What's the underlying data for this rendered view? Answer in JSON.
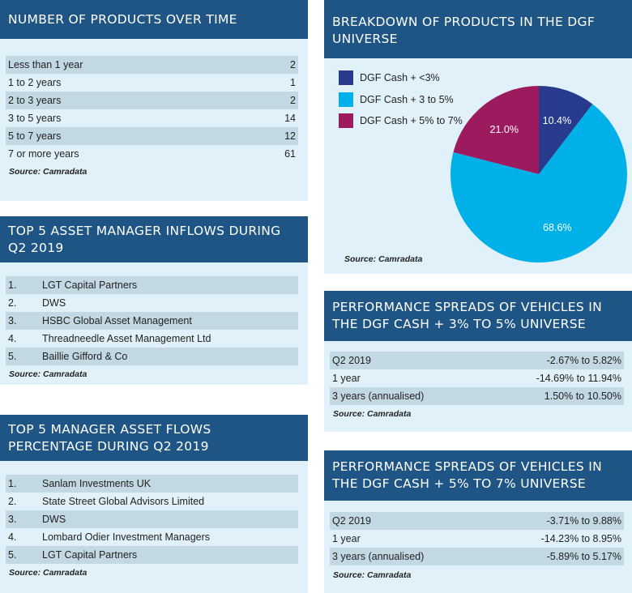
{
  "products_over_time": {
    "title": "NUMBER OF PRODUCTS OVER TIME",
    "rows": [
      {
        "label": "Less than 1 year",
        "value": "2"
      },
      {
        "label": "1 to 2 years",
        "value": "1"
      },
      {
        "label": "2 to 3 years",
        "value": "2"
      },
      {
        "label": "3 to 5 years",
        "value": "14"
      },
      {
        "label": "5 to 7 years",
        "value": "12"
      },
      {
        "label": "7 or more years",
        "value": "61"
      }
    ],
    "source": "Source: Camradata"
  },
  "inflows": {
    "title": "TOP 5 ASSET MANAGER INFLOWS DURING Q2 2019",
    "rows": [
      {
        "rank": "1.",
        "name": "LGT Capital Partners"
      },
      {
        "rank": "2.",
        "name": "DWS"
      },
      {
        "rank": "3.",
        "name": "HSBC Global Asset Management"
      },
      {
        "rank": "4.",
        "name": "Threadneedle Asset Management Ltd"
      },
      {
        "rank": "5.",
        "name": "Baillie Gifford & Co"
      }
    ],
    "source": "Source: Camradata"
  },
  "flows_pct": {
    "title": "TOP 5 MANAGER ASSET FLOWS PERCENTAGE DURING Q2 2019",
    "rows": [
      {
        "rank": "1.",
        "name": "Sanlam Investments UK"
      },
      {
        "rank": "2.",
        "name": "State Street Global Advisors Limited"
      },
      {
        "rank": "3.",
        "name": "DWS"
      },
      {
        "rank": "4.",
        "name": "Lombard Odier Investment Managers"
      },
      {
        "rank": "5.",
        "name": "LGT Capital Partners"
      }
    ],
    "source": "Source: Camradata"
  },
  "breakdown": {
    "title": "BREAKDOWN OF PRODUCTS IN THE DGF UNIVERSE",
    "source": "Source: Camradata"
  },
  "chart_data": {
    "type": "pie",
    "title": "BREAKDOWN OF PRODUCTS IN THE DGF UNIVERSE",
    "slices": [
      {
        "label": "DGF Cash + <3%",
        "value": 10.4,
        "display": "10.4%",
        "color": "#283a8c"
      },
      {
        "label": "DGF Cash + 3 to 5%",
        "value": 68.6,
        "display": "68.6%",
        "color": "#00b1e9"
      },
      {
        "label": "DGF Cash + 5% to 7%",
        "value": 21.0,
        "display": "21.0%",
        "color": "#9b1b5e"
      }
    ],
    "legend_position": "top-left"
  },
  "spreads_3_5": {
    "title": "PERFORMANCE SPREADS OF VEHICLES IN THE DGF CASH + 3% TO 5% UNIVERSE",
    "rows": [
      {
        "label": "Q2 2019",
        "value": "-2.67% to 5.82%"
      },
      {
        "label": "1 year",
        "value": "-14.69% to 11.94%"
      },
      {
        "label": "3 years (annualised)",
        "value": "1.50% to 10.50%"
      }
    ],
    "source": "Source: Camradata"
  },
  "spreads_5_7": {
    "title": "PERFORMANCE SPREADS OF VEHICLES IN THE DGF CASH + 5% TO 7% UNIVERSE",
    "rows": [
      {
        "label": "Q2 2019",
        "value": "-3.71% to 9.88%"
      },
      {
        "label": "1 year",
        "value": "-14.23% to 8.95%"
      },
      {
        "label": "3 years (annualised)",
        "value": "-5.89% to 5.17%"
      }
    ],
    "source": "Source: Camradata"
  }
}
